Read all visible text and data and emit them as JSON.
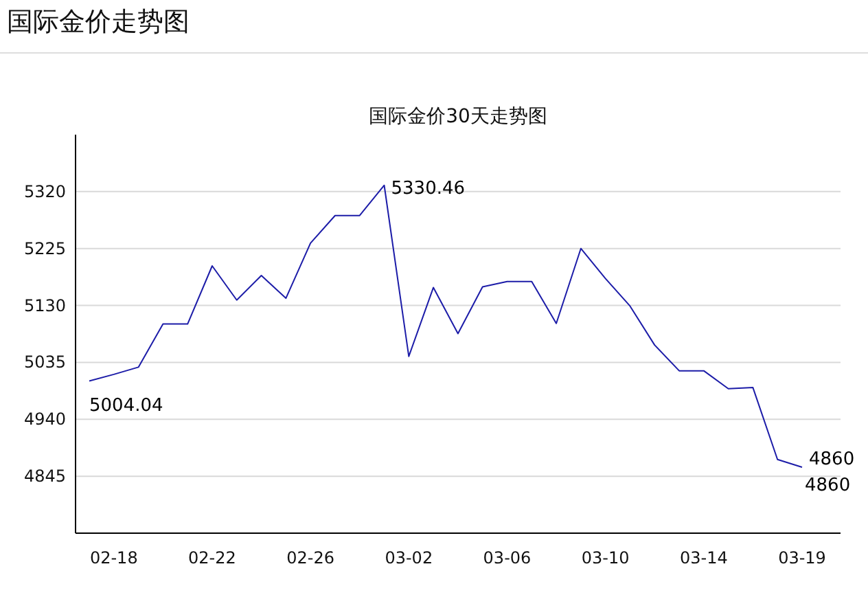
{
  "chart_data": {
    "type": "line",
    "title": "国际金价走势图",
    "subtitle": "国际金价30天走势图",
    "categories": [
      null,
      "02-18",
      null,
      null,
      null,
      "02-22",
      null,
      null,
      null,
      "02-26",
      null,
      null,
      null,
      "03-02",
      null,
      null,
      null,
      "03-06",
      null,
      null,
      null,
      "03-10",
      null,
      null,
      null,
      "03-14",
      null,
      null,
      null,
      "03-19"
    ],
    "series": [
      {
        "color": "#1c1ca8",
        "values": [
          5004.04,
          5015,
          5027,
          5099,
          5099,
          5196,
          5139,
          5180,
          5142,
          5234,
          5280,
          5280,
          5330.46,
          5045,
          5160,
          5083,
          5161,
          5170,
          5170,
          5100,
          5225,
          5175,
          5129,
          5064,
          5021,
          5021,
          4991,
          4993,
          4873,
          4860
        ],
        "value_labels": [
          "5004.04",
          null,
          null,
          null,
          null,
          null,
          null,
          null,
          null,
          null,
          null,
          null,
          "5330.46",
          null,
          null,
          null,
          null,
          null,
          null,
          null,
          null,
          null,
          null,
          null,
          null,
          null,
          null,
          null,
          null,
          "4860"
        ]
      }
    ],
    "annotations": [
      "4860"
    ],
    "ylim": [
      4750,
      5415
    ],
    "yticks": [
      4845,
      4940,
      5035,
      5130,
      5225,
      5320
    ],
    "grid": "y",
    "marker": "none",
    "line_style": "solid"
  }
}
